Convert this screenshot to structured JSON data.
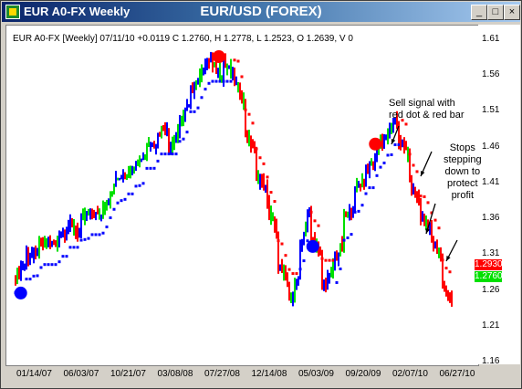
{
  "window": {
    "title": "EUR A0-FX Weekly",
    "heading": "EUR/USD (FOREX)",
    "buttons": [
      "_",
      "□",
      "×"
    ]
  },
  "info_line": "EUR A0-FX [Weekly] 07/11/10 +0.0119 C 1.2760, H 1.2778, L 1.2523, O 1.2639, V 0",
  "chart_data": {
    "type": "bar",
    "subtype": "ohlc-price-bars-with-trailing-stop-dots",
    "title": "EUR/USD (FOREX)",
    "y_ticks": [
      1.61,
      1.56,
      1.51,
      1.46,
      1.41,
      1.36,
      1.31,
      1.26,
      1.21,
      1.16
    ],
    "x_ticks": [
      "01/14/07",
      "06/03/07",
      "10/21/07",
      "03/08/08",
      "07/27/08",
      "12/14/08",
      "05/03/09",
      "09/20/09",
      "02/07/10",
      "06/27/10"
    ],
    "ylim": [
      1.16,
      1.61
    ],
    "series_colors": {
      "up": "#0000ff",
      "down": "#ff0000",
      "neutral": "#00e000"
    },
    "close_path": [
      [
        1.28,
        1.3
      ],
      [
        1.31,
        1.31
      ],
      [
        1.32,
        1.33
      ],
      [
        1.33,
        1.32
      ],
      [
        1.34,
        1.35
      ],
      [
        1.35,
        1.34
      ],
      [
        1.36,
        1.37
      ],
      [
        1.37,
        1.36
      ],
      [
        1.38,
        1.4
      ],
      [
        1.41,
        1.43
      ],
      [
        1.42,
        1.44
      ],
      [
        1.44,
        1.45
      ],
      [
        1.47,
        1.46
      ],
      [
        1.48,
        1.49
      ],
      [
        1.46,
        1.48
      ],
      [
        1.5,
        1.52
      ],
      [
        1.54,
        1.56
      ],
      [
        1.57,
        1.59
      ],
      [
        1.57,
        1.56
      ],
      [
        1.58,
        1.56
      ],
      [
        1.55,
        1.52
      ],
      [
        1.48,
        1.45
      ],
      [
        1.42,
        1.4
      ],
      [
        1.38,
        1.33
      ],
      [
        1.3,
        1.26
      ],
      [
        1.25,
        1.28
      ],
      [
        1.32,
        1.38
      ],
      [
        1.34,
        1.3
      ],
      [
        1.27,
        1.28
      ],
      [
        1.3,
        1.33
      ],
      [
        1.36,
        1.38
      ],
      [
        1.4,
        1.42
      ],
      [
        1.43,
        1.44
      ],
      [
        1.46,
        1.48
      ],
      [
        1.48,
        1.5
      ],
      [
        1.47,
        1.45
      ],
      [
        1.41,
        1.38
      ],
      [
        1.36,
        1.35
      ],
      [
        1.33,
        1.3
      ],
      [
        1.27,
        1.24
      ],
      [
        1.22,
        1.2
      ],
      [
        1.22,
        1.25
      ]
    ],
    "markers": [
      {
        "label": "start",
        "x_index": 0,
        "y": 1.257,
        "color": "#0000ff"
      },
      {
        "label": "top",
        "x_index": 19,
        "y": 1.587,
        "color": "#ff0000"
      },
      {
        "label": "low",
        "x_index": 28,
        "y": 1.322,
        "color": "#0000ff"
      },
      {
        "label": "sell",
        "x_index": 34,
        "y": 1.465,
        "color": "#ff0000"
      }
    ],
    "last_price_tags": [
      {
        "value": "1.2930",
        "color": "#ff0000"
      },
      {
        "value": "1.2760",
        "color": "#00e000"
      }
    ]
  },
  "annotations": {
    "sell_signal": [
      "Sell signal with",
      "red dot & red bar"
    ],
    "stops": [
      "Stops",
      "stepping",
      "down to",
      "protect",
      "profit"
    ]
  }
}
